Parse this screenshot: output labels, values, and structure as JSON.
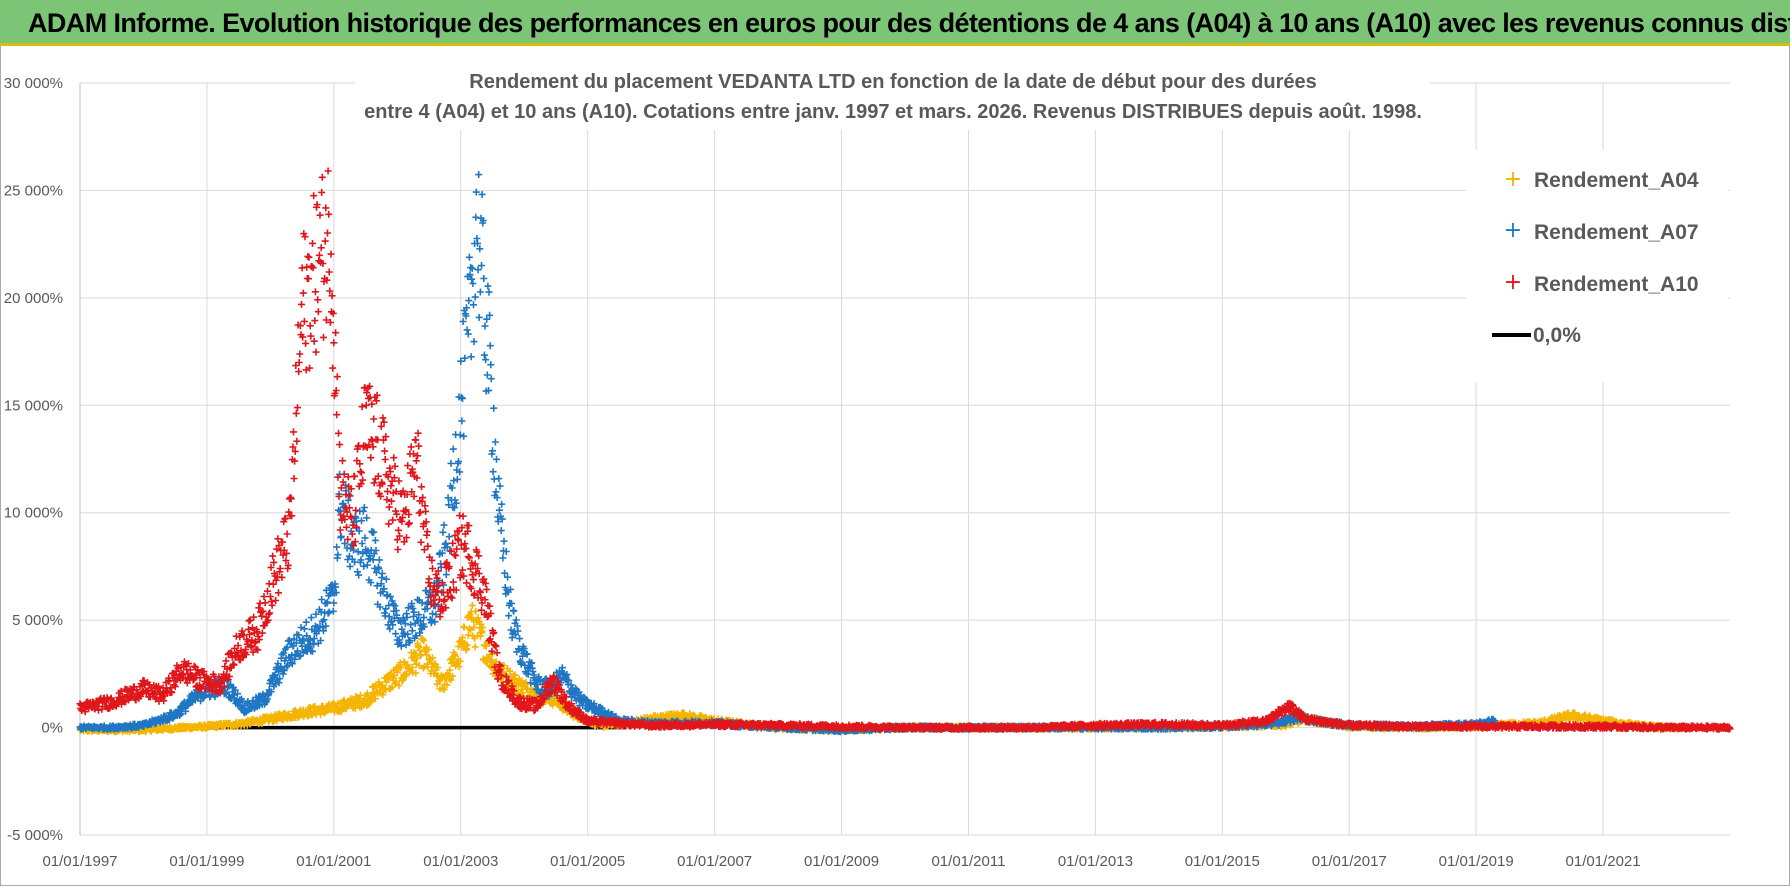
{
  "banner": {
    "title": "ADAM Informe. Evolution historique des performances en euros pour des détentions de 4 ans (A04) à 10 ans (A10) avec les revenus connus distribués"
  },
  "colors": {
    "banner_bg": "#7cc576",
    "banner_border": "#d8c000",
    "A04": "#f5b400",
    "A07": "#1f77c4",
    "A10": "#e0161b",
    "zero": "#000000",
    "grid": "#d9d9d9"
  },
  "chart_data": {
    "type": "scatter",
    "title_lines": [
      "Rendement du placement VEDANTA LTD en fonction de la date de début pour des durées",
      "entre 4 (A04) et 10 ans (A10). Cotations entre janv. 1997 et mars. 2026. Revenus DISTRIBUES depuis août. 1998."
    ],
    "xlim": [
      1997.0,
      2023.0
    ],
    "ylim": [
      -5000,
      30000
    ],
    "y_ticks": [
      -5000,
      0,
      5000,
      10000,
      15000,
      20000,
      25000,
      30000
    ],
    "y_tick_labels": [
      "-5 000%",
      "0%",
      "5 000%",
      "10 000%",
      "15 000%",
      "20 000%",
      "25 000%",
      "30 000%"
    ],
    "x_ticks": [
      1997,
      1999,
      2001,
      2003,
      2005,
      2007,
      2009,
      2011,
      2013,
      2015,
      2017,
      2019,
      2021
    ],
    "x_tick_labels": [
      "01/01/1997",
      "01/01/1999",
      "01/01/2001",
      "01/01/2003",
      "01/01/2005",
      "01/01/2007",
      "01/01/2009",
      "01/01/2011",
      "01/01/2013",
      "01/01/2015",
      "01/01/2017",
      "01/01/2019",
      "01/01/2021"
    ],
    "grid": true,
    "legend_position": "top-right",
    "series": [
      {
        "name": "Rendement_A04",
        "marker": "+",
        "x": [
          1997.0,
          1998.0,
          1999.0,
          1999.6,
          2000.0,
          2000.5,
          2001.0,
          2001.5,
          2001.8,
          2002.1,
          2002.4,
          2002.7,
          2003.0,
          2003.15,
          2003.35,
          2003.6,
          2003.9,
          2004.2,
          2004.5,
          2004.8,
          2005.2,
          2005.6,
          2006.0,
          2006.5,
          2007.0,
          2008.0,
          2009.0,
          2010.0,
          2011.0,
          2012.0,
          2013.0,
          2014.0,
          2015.0,
          2016.0,
          2016.3,
          2017.0,
          2018.0,
          2019.0,
          2019.6,
          2020.0,
          2020.5,
          2021.0,
          2021.5,
          2022.0,
          2022.3
        ],
        "y": [
          -100,
          -100,
          50,
          200,
          400,
          700,
          900,
          1300,
          2000,
          2600,
          3500,
          2000,
          3500,
          5000,
          4000,
          2600,
          2000,
          1500,
          1300,
          600,
          100,
          200,
          400,
          550,
          300,
          0,
          -100,
          0,
          0,
          0,
          0,
          0,
          50,
          150,
          400,
          50,
          0,
          50,
          150,
          200,
          550,
          300,
          100,
          0,
          0
        ]
      },
      {
        "name": "Rendement_A07",
        "marker": "+",
        "x": [
          1997.0,
          1997.5,
          1998.0,
          1998.5,
          1998.9,
          1999.3,
          1999.6,
          1999.9,
          2000.3,
          2000.7,
          2001.0,
          2001.1,
          2001.3,
          2001.5,
          2001.7,
          2002.0,
          2002.3,
          2002.6,
          2002.8,
          2003.0,
          2003.15,
          2003.25,
          2003.45,
          2003.6,
          2003.8,
          2004.0,
          2004.2,
          2004.4,
          2004.6,
          2004.9,
          2005.5,
          2006.0,
          2007.0,
          2008.0,
          2009.0,
          2010.0,
          2011.0,
          2012.0,
          2013.0,
          2014.0,
          2015.0,
          2015.9,
          2016.2,
          2016.5,
          2017.0,
          2018.0,
          2019.0,
          2019.3
        ],
        "y": [
          0,
          0,
          100,
          600,
          1600,
          2000,
          900,
          1300,
          3500,
          4500,
          6000,
          10500,
          8500,
          8800,
          7000,
          4500,
          5000,
          5800,
          9000,
          15000,
          19000,
          24000,
          17000,
          10000,
          5000,
          3200,
          2000,
          1800,
          2400,
          1200,
          300,
          200,
          200,
          0,
          -100,
          0,
          0,
          0,
          0,
          0,
          50,
          200,
          500,
          300,
          100,
          50,
          150,
          300
        ]
      },
      {
        "name": "Rendement_A10",
        "marker": "+",
        "x": [
          1997.0,
          1997.5,
          1998.0,
          1998.3,
          1998.6,
          1998.9,
          1999.2,
          1999.5,
          1999.8,
          2000.0,
          2000.3,
          2000.5,
          2000.75,
          2000.95,
          2001.1,
          2001.3,
          2001.5,
          2001.7,
          2001.9,
          2002.1,
          2002.3,
          2002.5,
          2002.7,
          2002.9,
          2003.0,
          2003.15,
          2003.35,
          2003.6,
          2003.9,
          2004.2,
          2004.45,
          2004.7,
          2005.0,
          2005.5,
          2006.0,
          2007.0,
          2008.0,
          2009.0,
          2010.0,
          2011.0,
          2012.0,
          2013.0,
          2014.0,
          2015.0,
          2015.7,
          2016.05,
          2016.3,
          2017.0,
          2018.0,
          2019.0,
          2020.0,
          2021.0,
          2022.0,
          2023.0
        ],
        "y": [
          900,
          1200,
          1800,
          1500,
          2700,
          2200,
          2000,
          3800,
          4500,
          6500,
          9000,
          19500,
          21500,
          23000,
          11000,
          9500,
          14000,
          13000,
          11000,
          9500,
          12500,
          7000,
          6000,
          7500,
          8500,
          8000,
          6500,
          2500,
          1200,
          1000,
          2200,
          1000,
          300,
          200,
          100,
          150,
          100,
          50,
          0,
          0,
          0,
          100,
          150,
          100,
          300,
          1000,
          400,
          100,
          50,
          50,
          50,
          50,
          0,
          0
        ]
      },
      {
        "name": "0,0%",
        "marker": "line",
        "x": [
          1997.0,
          2005.6
        ],
        "y": [
          0,
          0
        ]
      }
    ]
  }
}
